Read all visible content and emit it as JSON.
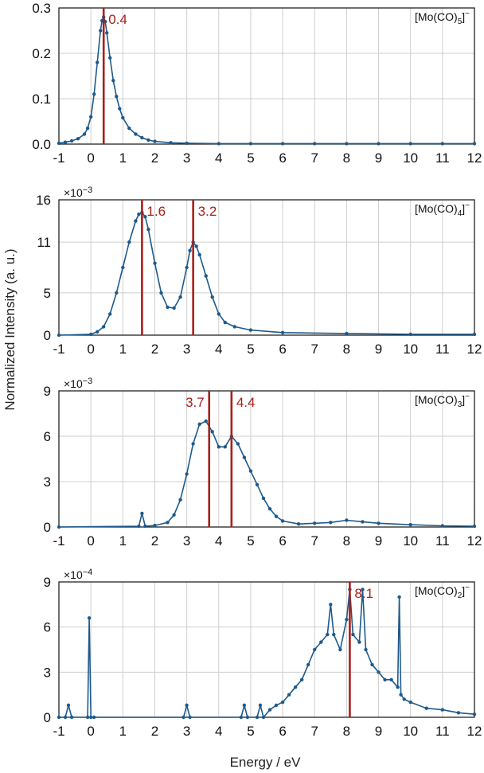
{
  "y_axis_label": "Normalized Intensity (a. u.)",
  "x_axis_label": "Energy / eV",
  "colors": {
    "series": "#1d5a8c",
    "marker_line": "#a8201a",
    "grid": "#cfcfcf",
    "axis": "#111111"
  },
  "chart_data": [
    {
      "type": "line",
      "title": "",
      "species": "[Mo(CO)5]−",
      "species_parts": {
        "main": "[Mo(CO)",
        "sub": "5",
        "end": "]",
        "sup": "−"
      },
      "multiplier_label": "",
      "xlim": [
        -1,
        12
      ],
      "ylim": [
        0,
        0.3
      ],
      "xticks": [
        -1,
        0,
        1,
        2,
        3,
        4,
        5,
        6,
        7,
        8,
        9,
        10,
        11,
        12
      ],
      "xtick_labels": [
        "-1",
        "0",
        "1",
        "2",
        "3",
        "4",
        "5",
        "6",
        "7",
        "8",
        "9",
        "10",
        "11",
        "12"
      ],
      "yticks": [
        0,
        0.1,
        0.2,
        0.3
      ],
      "ytick_labels": [
        "0.0",
        "0.1",
        "0.2",
        "0.3"
      ],
      "grid": true,
      "markers": [
        {
          "x": 0.4,
          "label": "0.4"
        }
      ],
      "series": [
        {
          "x": [
            -1.0,
            -0.8,
            -0.6,
            -0.4,
            -0.2,
            -0.1,
            0.0,
            0.1,
            0.2,
            0.3,
            0.35,
            0.4,
            0.45,
            0.5,
            0.6,
            0.7,
            0.8,
            0.9,
            1.0,
            1.2,
            1.4,
            1.6,
            1.8,
            2.0,
            2.5,
            3.0,
            4.0,
            5.0,
            6.0,
            7.0,
            8.0,
            9.0,
            10.0,
            11.0,
            12.0
          ],
          "y": [
            0.002,
            0.004,
            0.007,
            0.012,
            0.022,
            0.035,
            0.06,
            0.11,
            0.18,
            0.25,
            0.272,
            0.28,
            0.27,
            0.245,
            0.19,
            0.14,
            0.105,
            0.078,
            0.058,
            0.035,
            0.022,
            0.014,
            0.009,
            0.006,
            0.003,
            0.002,
            0.001,
            0.001,
            0.001,
            0.001,
            0.001,
            0.001,
            0.001,
            0.001,
            0.001
          ]
        }
      ]
    },
    {
      "type": "line",
      "title": "",
      "species": "[Mo(CO)4]−",
      "species_parts": {
        "main": "[Mo(CO)",
        "sub": "4",
        "end": "]",
        "sup": "−"
      },
      "multiplier_label": "×10−3",
      "multiplier_parts": {
        "base": "×10",
        "exp": "−3"
      },
      "xlim": [
        -1,
        12
      ],
      "ylim": [
        0,
        16
      ],
      "xticks": [
        -1,
        0,
        1,
        2,
        3,
        4,
        5,
        6,
        7,
        8,
        9,
        10,
        11,
        12
      ],
      "xtick_labels": [
        "-1",
        "0",
        "1",
        "2",
        "3",
        "4",
        "5",
        "6",
        "7",
        "8",
        "9",
        "10",
        "11",
        "12"
      ],
      "yticks": [
        0,
        5,
        11,
        16
      ],
      "ytick_labels": [
        "0",
        "5",
        "11",
        "16"
      ],
      "grid": true,
      "markers": [
        {
          "x": 1.6,
          "label": "1.6"
        },
        {
          "x": 3.2,
          "label": "3.2"
        }
      ],
      "series": [
        {
          "x": [
            -1.0,
            0.0,
            0.2,
            0.4,
            0.6,
            0.8,
            1.0,
            1.2,
            1.4,
            1.5,
            1.6,
            1.7,
            1.8,
            2.0,
            2.2,
            2.4,
            2.6,
            2.8,
            3.0,
            3.1,
            3.2,
            3.3,
            3.4,
            3.6,
            3.8,
            4.0,
            4.2,
            4.5,
            5.0,
            6.0,
            8.0,
            10.0,
            12.0
          ],
          "y": [
            0.0,
            0.1,
            0.4,
            1.0,
            2.5,
            5.0,
            8.0,
            11.0,
            13.5,
            14.3,
            14.5,
            14.0,
            12.5,
            8.5,
            5.0,
            3.3,
            3.2,
            4.5,
            8.0,
            10.0,
            11.0,
            10.5,
            9.5,
            7.0,
            4.5,
            2.5,
            1.5,
            1.0,
            0.6,
            0.3,
            0.2,
            0.1,
            0.1
          ]
        }
      ]
    },
    {
      "type": "line",
      "title": "",
      "species": "[Mo(CO)3]−",
      "species_parts": {
        "main": "[Mo(CO)",
        "sub": "3",
        "end": "]",
        "sup": "−"
      },
      "multiplier_label": "×10−3",
      "multiplier_parts": {
        "base": "×10",
        "exp": "−3"
      },
      "xlim": [
        -1,
        12
      ],
      "ylim": [
        0,
        9
      ],
      "xticks": [
        -1,
        0,
        1,
        2,
        3,
        4,
        5,
        6,
        7,
        8,
        9,
        10,
        11,
        12
      ],
      "xtick_labels": [
        "-1",
        "0",
        "1",
        "2",
        "3",
        "4",
        "5",
        "6",
        "7",
        "8",
        "9",
        "10",
        "11",
        "12"
      ],
      "yticks": [
        0,
        3,
        6,
        9
      ],
      "ytick_labels": [
        "0",
        "3",
        "6",
        "9"
      ],
      "grid": true,
      "markers": [
        {
          "x": 3.7,
          "label": "3.7"
        },
        {
          "x": 4.4,
          "label": "4.4"
        }
      ],
      "series": [
        {
          "x": [
            -1.0,
            1.5,
            1.6,
            1.7,
            2.0,
            2.4,
            2.6,
            2.8,
            3.0,
            3.2,
            3.4,
            3.6,
            3.8,
            4.0,
            4.2,
            4.4,
            4.6,
            4.8,
            5.0,
            5.2,
            5.4,
            5.6,
            5.8,
            6.0,
            6.5,
            7.0,
            7.5,
            8.0,
            8.5,
            9.0,
            10.0,
            11.0,
            12.0
          ],
          "y": [
            0.0,
            0.05,
            0.9,
            0.05,
            0.1,
            0.3,
            0.8,
            1.8,
            3.5,
            5.5,
            6.8,
            7.0,
            6.3,
            5.3,
            5.3,
            6.0,
            5.5,
            4.6,
            3.7,
            2.8,
            1.9,
            1.2,
            0.7,
            0.4,
            0.2,
            0.25,
            0.3,
            0.45,
            0.35,
            0.25,
            0.15,
            0.08,
            0.05
          ]
        }
      ]
    },
    {
      "type": "line",
      "title": "",
      "species": "[Mo(CO)2]−",
      "species_parts": {
        "main": "[Mo(CO)",
        "sub": "2",
        "end": "]",
        "sup": "−"
      },
      "multiplier_label": "×10−4",
      "multiplier_parts": {
        "base": "×10",
        "exp": "−4"
      },
      "xlim": [
        -1,
        12
      ],
      "ylim": [
        0,
        9
      ],
      "xticks": [
        -1,
        0,
        1,
        2,
        3,
        4,
        5,
        6,
        7,
        8,
        9,
        10,
        11,
        12
      ],
      "xtick_labels": [
        "-1",
        "0",
        "1",
        "2",
        "3",
        "4",
        "5",
        "6",
        "7",
        "8",
        "9",
        "10",
        "11",
        "12"
      ],
      "yticks": [
        0,
        3,
        6,
        9
      ],
      "ytick_labels": [
        "0",
        "3",
        "6",
        "9"
      ],
      "grid": true,
      "markers": [
        {
          "x": 8.1,
          "label": "8.1"
        }
      ],
      "series": [
        {
          "x": [
            -1.0,
            -0.8,
            -0.7,
            -0.6,
            -0.1,
            -0.05,
            0.0,
            0.1,
            2.9,
            3.0,
            3.1,
            4.7,
            4.8,
            4.9,
            5.2,
            5.3,
            5.4,
            5.6,
            5.8,
            6.0,
            6.2,
            6.4,
            6.6,
            6.8,
            7.0,
            7.2,
            7.4,
            7.5,
            7.6,
            7.8,
            8.0,
            8.1,
            8.2,
            8.4,
            8.5,
            8.6,
            8.8,
            9.0,
            9.2,
            9.4,
            9.6,
            9.65,
            9.7,
            9.8,
            10.0,
            10.5,
            11.0,
            11.5,
            12.0
          ],
          "y": [
            0.0,
            0.0,
            0.8,
            0.0,
            0.0,
            6.6,
            0.0,
            0.0,
            0.0,
            0.8,
            0.0,
            0.0,
            0.8,
            0.0,
            0.0,
            0.8,
            0.0,
            0.5,
            0.8,
            1.0,
            1.5,
            2.0,
            2.5,
            3.5,
            4.5,
            5.0,
            5.5,
            7.5,
            5.5,
            4.5,
            6.5,
            8.5,
            5.5,
            5.0,
            8.5,
            4.5,
            3.5,
            3.0,
            2.5,
            2.5,
            2.0,
            8.0,
            1.5,
            1.2,
            1.0,
            0.6,
            0.5,
            0.3,
            0.2
          ]
        }
      ]
    }
  ]
}
